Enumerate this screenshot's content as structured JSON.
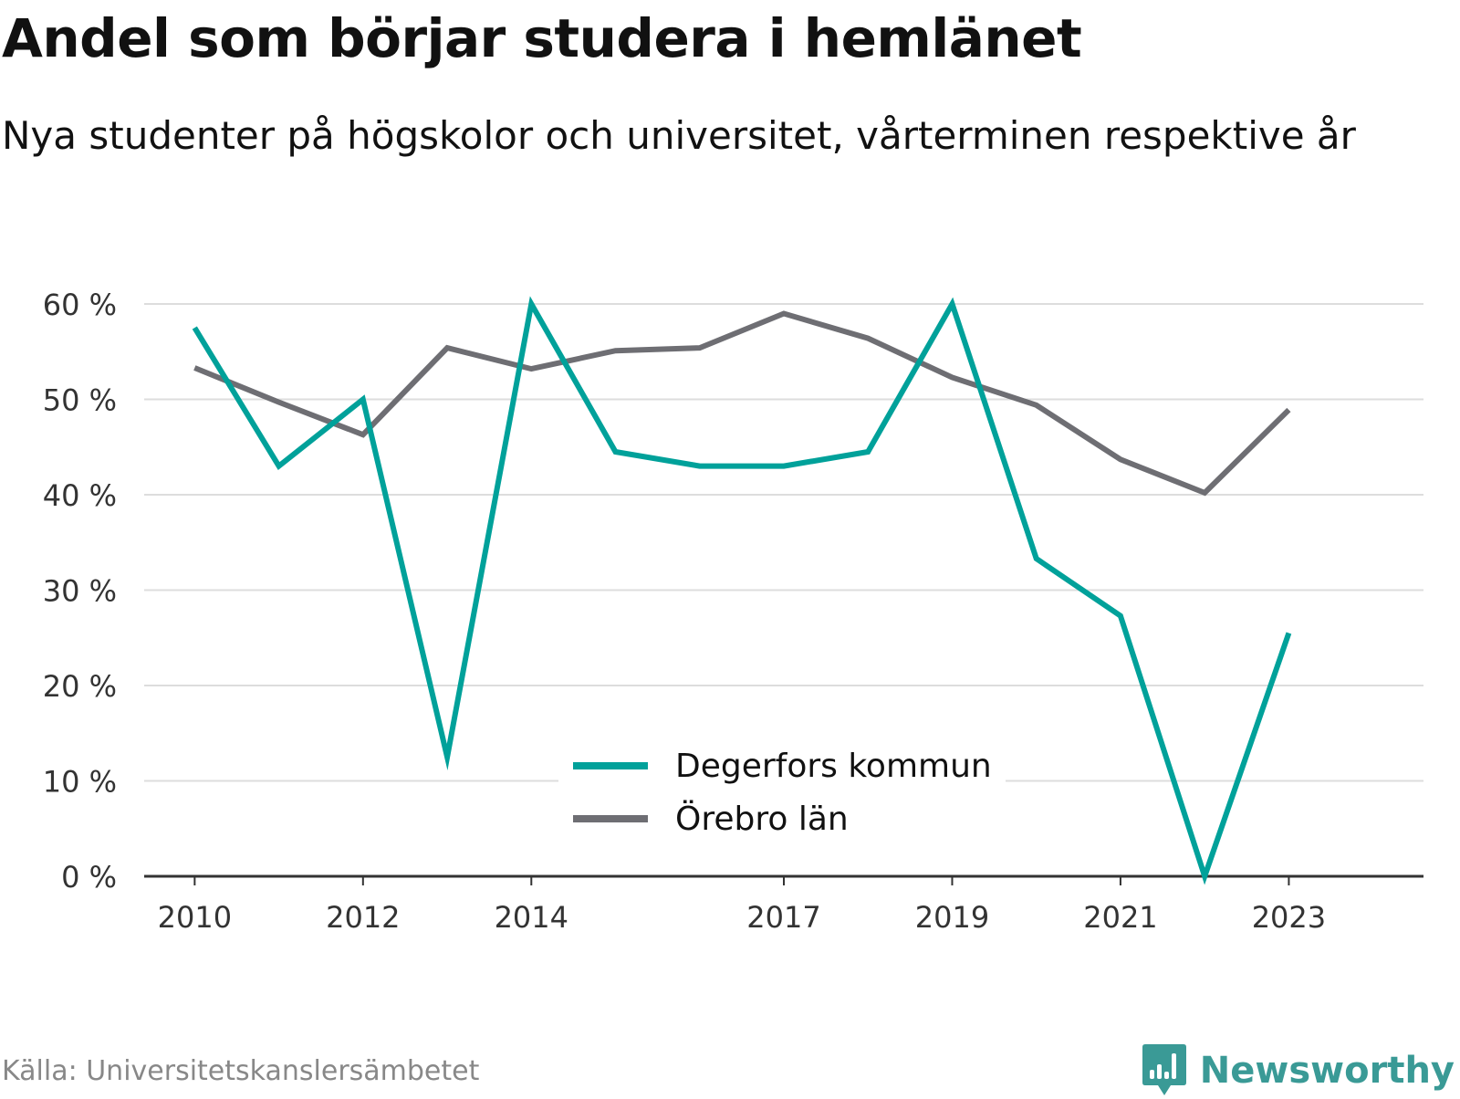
{
  "header": {
    "title": "Andel som börjar studera i hemlänet",
    "subtitle": "Nya studenter på högskolor och universitet, vårterminen respektive år"
  },
  "footer": {
    "source": "Källa: Universitetskanslersämbetet",
    "brand": "Newsworthy",
    "brand_icon": "bar-chart-speech-bubble-icon",
    "brand_color": "#3a9a96"
  },
  "chart_data": {
    "type": "line",
    "title": "Andel som börjar studera i hemlänet",
    "subtitle": "Nya studenter på högskolor och universitet, vårterminen respektive år",
    "x": [
      2010,
      2011,
      2012,
      2013,
      2014,
      2015,
      2016,
      2017,
      2018,
      2019,
      2020,
      2021,
      2022,
      2023
    ],
    "x_tick_labels": [
      "2010",
      "2012",
      "2014",
      "2017",
      "2019",
      "2021",
      "2023"
    ],
    "x_tick_values": [
      2010,
      2012,
      2014,
      2017,
      2019,
      2021,
      2023
    ],
    "y_ticks": [
      0,
      10,
      20,
      30,
      40,
      50,
      60
    ],
    "y_tick_labels": [
      "0 %",
      "10 %",
      "20 %",
      "30 %",
      "40 %",
      "50 %",
      "60 %"
    ],
    "ylim": [
      0,
      60
    ],
    "xlim": [
      2009.4,
      2024.6
    ],
    "grid": true,
    "legend_position": "bottom-center",
    "series": [
      {
        "name": "Degerfors kommun",
        "color": "#00a19a",
        "values": [
          57.5,
          43,
          50,
          12.5,
          60,
          44.5,
          43,
          43,
          44.5,
          60,
          33.3,
          27.3,
          0,
          25.5
        ]
      },
      {
        "name": "Örebro län",
        "color": "#6e6e73",
        "values": [
          53.3,
          49.7,
          46.3,
          55.4,
          53.2,
          55.1,
          55.4,
          59,
          56.4,
          52.3,
          49.4,
          43.7,
          40.2,
          48.9
        ]
      }
    ]
  }
}
